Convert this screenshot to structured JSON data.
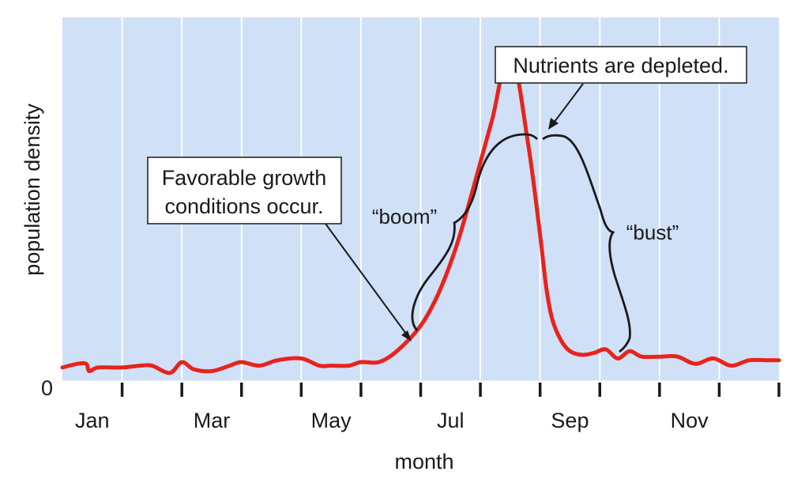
{
  "chart_data": {
    "type": "line",
    "xlabel": "month",
    "ylabel": "population density",
    "y_zero_label": "0",
    "tick_labels": [
      "Jan",
      "Mar",
      "May",
      "Jul",
      "Sep",
      "Nov"
    ],
    "grid": true,
    "colors": {
      "plot_background": "#cfe0f7",
      "gridlines": "#ffffff",
      "series": "#e8231b",
      "ink": "#1a1a1a"
    },
    "x_range_months": [
      0,
      12
    ],
    "y_range": [
      0,
      100
    ],
    "series": [
      {
        "values_x": [
          0,
          0.25,
          0.4,
          0.45,
          0.6,
          1.0,
          1.3,
          1.5,
          1.8,
          2.0,
          2.2,
          2.5,
          2.8,
          3.0,
          3.3,
          3.6,
          4.0,
          4.3,
          4.5,
          4.8,
          5.0,
          5.3,
          5.6,
          6.0,
          6.3,
          6.6,
          6.9,
          7.2,
          7.5,
          7.8,
          8.0,
          8.1,
          8.2,
          8.35,
          8.5,
          8.7,
          8.9,
          9.1,
          9.3,
          9.5,
          9.7,
          10.0,
          10.3,
          10.6,
          10.9,
          11.2,
          11.5,
          11.8,
          12.0
        ],
        "values_y": [
          3.5,
          4.5,
          4.5,
          2.5,
          3.5,
          3.5,
          4.0,
          4.0,
          2.0,
          5.0,
          3.0,
          2.5,
          4.0,
          5.0,
          4.0,
          5.5,
          6.0,
          4.0,
          4.0,
          4.0,
          5.0,
          5.0,
          8.0,
          15.0,
          24.0,
          37.0,
          54.0,
          72.0,
          91.0,
          65.0,
          40.0,
          26.0,
          17.0,
          11.0,
          8.0,
          7.0,
          7.5,
          8.5,
          6.0,
          8.0,
          6.5,
          6.5,
          6.5,
          4.5,
          6.0,
          4.0,
          5.5,
          5.5,
          5.5
        ]
      }
    ],
    "annotations": {
      "favorable": [
        "Favorable growth",
        "conditions occur."
      ],
      "depleted": "Nutrients are depleted.",
      "boom": "“boom”",
      "bust": "“bust”"
    }
  }
}
